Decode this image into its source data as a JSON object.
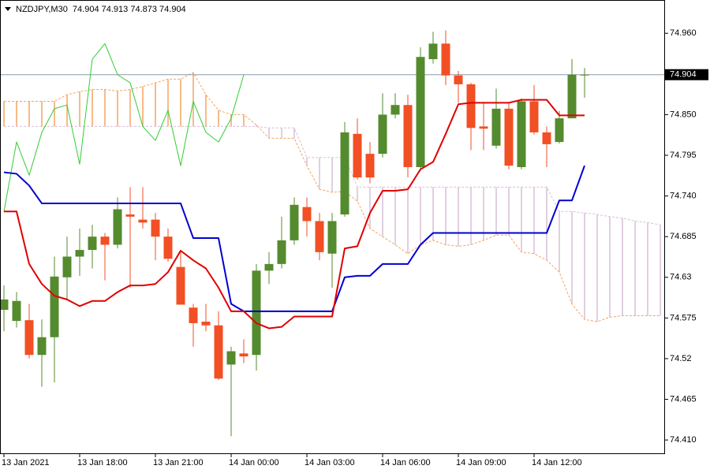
{
  "chart_data": {
    "type": "candlestick",
    "title": "NZDJPY,M30  74.904 74.913 74.873 74.904",
    "xlim": [
      -0.3125,
      52.3125
    ],
    "xticks": [
      {
        "value": 0,
        "label": "13 Jan 2021"
      },
      {
        "value": 6,
        "label": "13 Jan 18:00"
      },
      {
        "value": 12,
        "label": "13 Jan 21:00"
      },
      {
        "value": 18,
        "label": "14 Jan 00:00"
      },
      {
        "value": 24,
        "label": "14 Jan 03:00"
      },
      {
        "value": 30,
        "label": "14 Jan 06:00"
      },
      {
        "value": 36,
        "label": "14 Jan 09:00"
      },
      {
        "value": 42,
        "label": "14 Jan 12:00"
      }
    ],
    "ylim": [
      74.392,
      75.005
    ],
    "yticks": [
      {
        "value": 74.96,
        "label": "74.960"
      },
      {
        "value": 74.85,
        "label": "74.850"
      },
      74.795,
      {
        "value": 74.74,
        "label": "74.740"
      },
      74.685,
      74.63,
      74.575,
      74.52,
      74.465,
      {
        "value": 74.41,
        "label": "74.410"
      }
    ],
    "last_price": 74.904,
    "last_price_color": "#8a9aa8",
    "candles": {
      "up_color": "#548b2e",
      "down_color": "#f24f24",
      "x": [
        0,
        1,
        2,
        3,
        4,
        5,
        6,
        7,
        8,
        9,
        10,
        11,
        12,
        13,
        14,
        15,
        16,
        17,
        18,
        19,
        20,
        21,
        22,
        23,
        24,
        25,
        26,
        27,
        28,
        29,
        30,
        31,
        32,
        33,
        34,
        35,
        36,
        37,
        38,
        39,
        40,
        41,
        42,
        43,
        44,
        45,
        46
      ],
      "open": [
        74.586,
        74.571,
        74.572,
        74.525,
        74.549,
        74.63,
        74.658,
        74.667,
        74.685,
        74.674,
        74.715,
        74.708,
        74.708,
        74.685,
        74.644,
        74.589,
        74.57,
        74.565,
        74.512,
        74.527,
        74.525,
        74.639,
        74.648,
        74.68,
        74.725,
        74.706,
        74.662,
        74.715,
        74.824,
        74.797,
        74.797,
        74.85,
        74.863,
        74.779,
        74.925,
        74.946,
        74.903,
        74.891,
        74.834,
        74.808,
        74.858,
        74.779,
        74.868,
        74.826,
        74.813,
        74.845,
        74.904
      ],
      "high": [
        74.619,
        74.61,
        74.594,
        74.573,
        74.658,
        74.685,
        74.696,
        74.701,
        74.69,
        74.738,
        74.752,
        74.752,
        74.717,
        74.696,
        74.664,
        74.594,
        74.594,
        74.584,
        74.536,
        74.546,
        74.648,
        74.664,
        74.712,
        74.738,
        74.738,
        74.717,
        74.717,
        74.84,
        74.845,
        74.813,
        74.879,
        74.879,
        74.877,
        74.941,
        74.962,
        74.964,
        74.909,
        74.893,
        74.866,
        74.885,
        74.866,
        74.872,
        74.89,
        74.834,
        74.855,
        74.925,
        74.913
      ],
      "low": [
        74.557,
        74.562,
        74.52,
        74.482,
        74.488,
        74.6,
        74.632,
        74.642,
        74.626,
        74.669,
        74.616,
        74.696,
        74.653,
        74.651,
        74.593,
        74.536,
        74.557,
        74.491,
        74.415,
        74.514,
        74.504,
        74.621,
        74.642,
        74.674,
        74.685,
        74.653,
        74.616,
        74.712,
        74.762,
        74.757,
        74.792,
        74.845,
        74.765,
        74.776,
        74.919,
        74.89,
        74.866,
        74.802,
        74.802,
        74.804,
        74.776,
        74.776,
        74.823,
        74.779,
        74.811,
        74.845,
        74.873
      ],
      "close": [
        74.6,
        74.598,
        74.525,
        74.549,
        74.631,
        74.658,
        74.667,
        74.685,
        74.674,
        74.722,
        74.712,
        74.704,
        74.685,
        74.655,
        74.593,
        74.568,
        74.565,
        74.493,
        74.53,
        74.523,
        74.639,
        74.648,
        74.68,
        74.728,
        74.706,
        74.664,
        74.706,
        74.826,
        74.765,
        74.765,
        74.85,
        74.863,
        74.779,
        74.928,
        74.946,
        74.903,
        74.891,
        74.832,
        74.831,
        74.858,
        74.781,
        74.868,
        74.826,
        74.81,
        74.845,
        74.904,
        74.904
      ]
    },
    "cloud": {
      "bull_color": "#f4a460",
      "bear_color": "#d8bfd8",
      "x": [
        0,
        1,
        2,
        3,
        4,
        5,
        6,
        7,
        8,
        9,
        10,
        11,
        12,
        13,
        14,
        15,
        16,
        17,
        18,
        19,
        20,
        21,
        22,
        23,
        24,
        25,
        26,
        27,
        28,
        29,
        30,
        31,
        32,
        33,
        34,
        35,
        36,
        37,
        38,
        39,
        40,
        41,
        42,
        43,
        44,
        45,
        46,
        47,
        48,
        49,
        50,
        51,
        52
      ],
      "span_a": [
        74.868,
        74.868,
        74.868,
        74.868,
        74.868,
        74.877,
        74.881,
        74.884,
        74.884,
        74.882,
        74.884,
        74.888,
        74.893,
        74.898,
        74.898,
        74.907,
        74.877,
        74.856,
        74.85,
        74.85,
        74.836,
        74.818,
        74.818,
        74.818,
        74.781,
        74.749,
        74.745,
        74.746,
        74.733,
        74.696,
        74.685,
        74.674,
        74.662,
        74.674,
        74.68,
        74.674,
        74.672,
        74.674,
        74.68,
        74.687,
        74.687,
        74.664,
        74.662,
        74.653,
        74.637,
        74.594,
        74.573,
        74.57,
        74.576,
        74.578,
        74.578,
        74.578,
        74.578
      ],
      "span_b": [
        74.834,
        74.834,
        74.834,
        74.834,
        74.834,
        74.834,
        74.834,
        74.834,
        74.834,
        74.834,
        74.834,
        74.834,
        74.834,
        74.834,
        74.834,
        74.834,
        74.834,
        74.834,
        74.834,
        74.834,
        74.834,
        74.832,
        74.832,
        74.832,
        74.792,
        74.792,
        74.792,
        74.792,
        74.752,
        74.752,
        74.752,
        74.752,
        74.752,
        74.752,
        74.752,
        74.752,
        74.752,
        74.752,
        74.752,
        74.752,
        74.752,
        74.752,
        74.752,
        74.752,
        74.719,
        74.719,
        74.717,
        74.715,
        74.712,
        74.71,
        74.706,
        74.704,
        74.701
      ]
    },
    "lines": [
      {
        "color": "#32cd32",
        "width": 1,
        "x": [
          0,
          1,
          2,
          3,
          4,
          5,
          6,
          7,
          8,
          9,
          10,
          11,
          12,
          13,
          14,
          15,
          16,
          17,
          18,
          19
        ],
        "values": [
          74.719,
          74.813,
          74.768,
          74.826,
          74.858,
          74.863,
          74.783,
          74.925,
          74.946,
          74.904,
          74.893,
          74.834,
          74.815,
          74.856,
          74.781,
          74.868,
          74.826,
          74.813,
          74.845,
          74.904
        ]
      },
      {
        "color": "#0000d0",
        "width": 2,
        "x": [
          0,
          1,
          2,
          3,
          4,
          5,
          6,
          7,
          8,
          9,
          10,
          11,
          12,
          13,
          14,
          15,
          16,
          17,
          18,
          19,
          20,
          21,
          22,
          23,
          24,
          25,
          26,
          27,
          28,
          29,
          30,
          31,
          32,
          33,
          34,
          35,
          36,
          37,
          38,
          39,
          40,
          41,
          42,
          43,
          44,
          45,
          46
        ],
        "values": [
          74.772,
          74.77,
          74.754,
          74.73,
          74.73,
          74.73,
          74.73,
          74.73,
          74.73,
          74.73,
          74.73,
          74.73,
          74.73,
          74.73,
          74.73,
          74.683,
          74.683,
          74.683,
          74.594,
          74.584,
          74.584,
          74.584,
          74.584,
          74.584,
          74.584,
          74.584,
          74.584,
          74.63,
          74.632,
          74.632,
          74.648,
          74.648,
          74.648,
          74.674,
          74.69,
          74.69,
          74.69,
          74.69,
          74.69,
          74.69,
          74.69,
          74.69,
          74.69,
          74.69,
          74.734,
          74.734,
          74.781
        ]
      },
      {
        "color": "#e00000",
        "width": 2,
        "x": [
          0,
          1,
          2,
          3,
          4,
          5,
          6,
          7,
          8,
          9,
          10,
          11,
          12,
          13,
          14,
          15,
          16,
          17,
          18,
          19,
          20,
          21,
          22,
          23,
          24,
          25,
          26,
          27,
          28,
          29,
          30,
          31,
          32,
          33,
          34,
          35,
          36,
          37,
          38,
          39,
          40,
          41,
          42,
          43,
          44,
          45,
          46
        ],
        "values": [
          74.719,
          74.719,
          74.648,
          74.621,
          74.605,
          74.6,
          74.591,
          74.598,
          74.598,
          74.61,
          74.619,
          74.619,
          74.621,
          74.637,
          74.666,
          74.653,
          74.642,
          74.616,
          74.584,
          74.584,
          74.568,
          74.561,
          74.563,
          74.577,
          74.577,
          74.577,
          74.577,
          74.669,
          74.672,
          74.717,
          74.747,
          74.747,
          74.749,
          74.776,
          74.786,
          74.824,
          74.864,
          74.866,
          74.866,
          74.866,
          74.866,
          74.87,
          74.87,
          74.87,
          74.849,
          74.849,
          74.849
        ]
      }
    ]
  }
}
